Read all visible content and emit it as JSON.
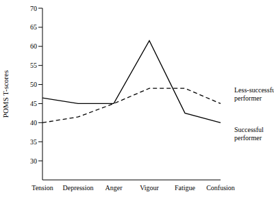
{
  "chart_data": {
    "type": "line",
    "y_label": "POMS T-scores",
    "categories": [
      "Tension",
      "Depression",
      "Anger",
      "Vigour",
      "Fatigue",
      "Confusion"
    ],
    "series": [
      {
        "name": "Successful performer",
        "color": "#000000",
        "line_style": "solid",
        "values": [
          46.5,
          45,
          45,
          61.5,
          42.5,
          40
        ]
      },
      {
        "name": "Less-successful performer",
        "color": "#000000",
        "line_style": "dashed",
        "values": [
          40,
          41.5,
          45,
          49,
          49,
          45
        ]
      }
    ],
    "ylim": [
      25,
      70
    ],
    "yticks": [
      30,
      35,
      40,
      45,
      50,
      55,
      60,
      65,
      70
    ],
    "grid": false
  }
}
